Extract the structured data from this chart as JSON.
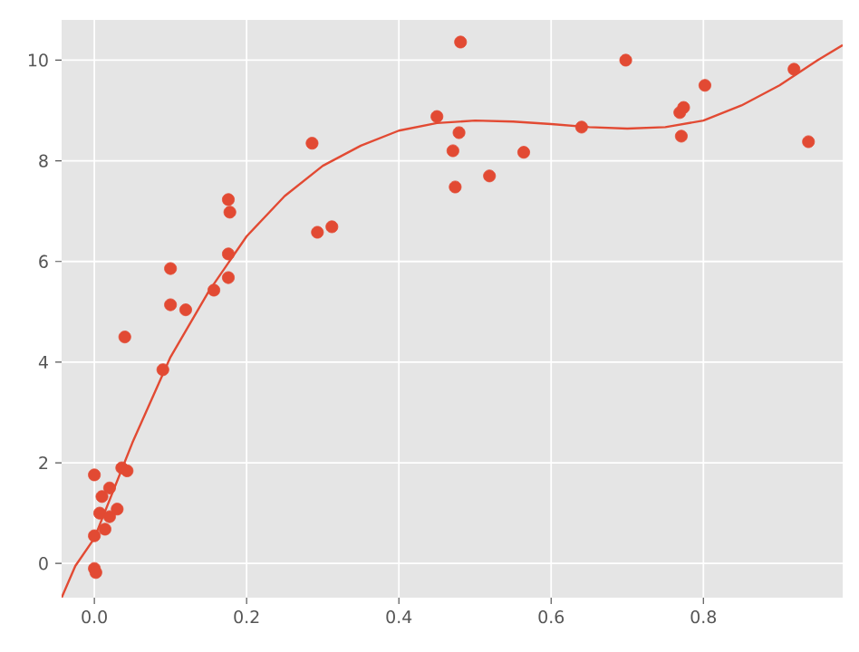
{
  "chart_data": {
    "type": "scatter",
    "xlim": [
      -0.043,
      0.983
    ],
    "ylim": [
      -0.68,
      10.8
    ],
    "xticks": [
      {
        "value": 0,
        "label": "0.0"
      },
      {
        "value": 0.2,
        "label": "0.2"
      },
      {
        "value": 0.4,
        "label": "0.4"
      },
      {
        "value": 0.6,
        "label": "0.6"
      },
      {
        "value": 0.8,
        "label": "0.8"
      }
    ],
    "yticks": [
      0,
      2,
      4,
      6,
      8,
      10
    ],
    "grid": true,
    "marker": "circle",
    "series": [
      {
        "color": "#e24a33",
        "x": [
          0,
          0,
          0.002,
          0,
          0.007,
          0.01,
          0.014,
          0.02,
          0.02,
          0.03,
          0.036,
          0.043,
          0.04,
          0.09,
          0.1,
          0.1,
          0.12,
          0.157,
          0.176,
          0.176,
          0.178,
          0.176,
          0.286,
          0.293,
          0.312,
          0.45,
          0.481,
          0.471,
          0.479,
          0.474,
          0.519,
          0.564,
          0.64,
          0.698,
          0.769,
          0.774,
          0.771,
          0.802,
          0.919,
          0.938
        ],
        "values": [
          1.76,
          -0.1,
          -0.18,
          0.55,
          1.0,
          1.33,
          0.68,
          1.5,
          0.93,
          1.08,
          1.9,
          1.84,
          4.5,
          3.85,
          5.14,
          5.86,
          5.04,
          5.43,
          5.68,
          6.15,
          6.98,
          7.23,
          8.35,
          6.58,
          6.69,
          8.88,
          10.36,
          8.2,
          8.56,
          7.48,
          7.7,
          8.17,
          8.67,
          10.0,
          8.96,
          9.06,
          8.49,
          9.5,
          9.82,
          8.38
        ]
      },
      {
        "type": "line",
        "color": "#e24a33",
        "marker": "none",
        "x": [
          -0.043,
          -0.025,
          0,
          0.05,
          0.1,
          0.15,
          0.2,
          0.25,
          0.3,
          0.35,
          0.4,
          0.45,
          0.5,
          0.55,
          0.6,
          0.65,
          0.7,
          0.75,
          0.8,
          0.85,
          0.9,
          0.95,
          0.983
        ],
        "values": [
          -0.68,
          -0.05,
          0.5,
          2.4,
          4.1,
          5.4,
          6.5,
          7.3,
          7.9,
          8.3,
          8.6,
          8.75,
          8.8,
          8.78,
          8.73,
          8.67,
          8.64,
          8.67,
          8.8,
          9.1,
          9.5,
          10.0,
          10.3
        ]
      }
    ]
  }
}
